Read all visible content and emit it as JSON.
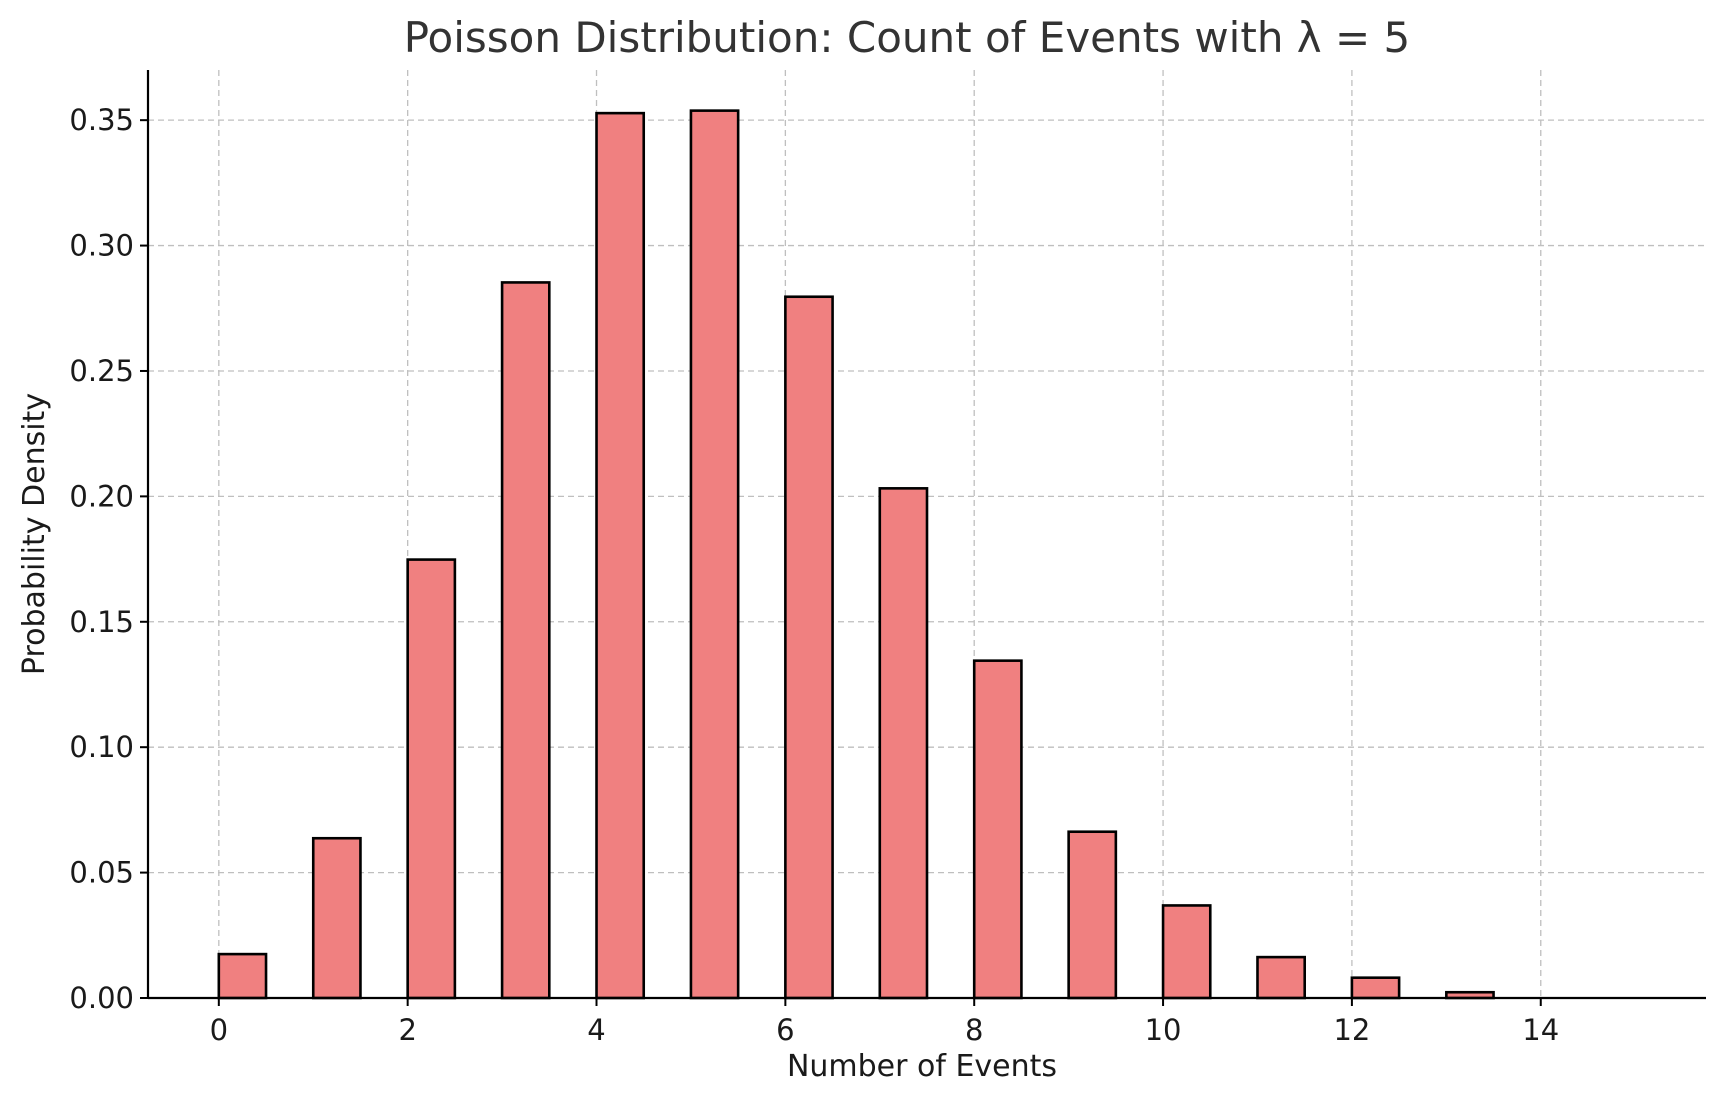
{
  "chart_data": {
    "type": "bar",
    "title": "Poisson Distribution: Count of Events with λ = 5",
    "xlabel": "Number of Events",
    "ylabel": "Probability Density",
    "x": [
      0,
      1,
      2,
      3,
      4,
      5,
      6,
      7,
      8,
      9,
      10,
      11,
      12,
      13
    ],
    "values": [
      0.0175,
      0.0637,
      0.1748,
      0.2853,
      0.3528,
      0.3538,
      0.2796,
      0.2032,
      0.1345,
      0.0663,
      0.0369,
      0.0163,
      0.0081,
      0.0023
    ],
    "xlim": [
      -0.75,
      15.75
    ],
    "ylim": [
      0,
      0.37
    ],
    "xticks": [
      0,
      2,
      4,
      6,
      8,
      10,
      12,
      14
    ],
    "yticks": [
      0.0,
      0.05,
      0.1,
      0.15,
      0.2,
      0.25,
      0.3,
      0.35
    ],
    "ytick_labels": [
      "0.00",
      "0.05",
      "0.10",
      "0.15",
      "0.20",
      "0.25",
      "0.30",
      "0.35"
    ],
    "xtick_labels": [
      "0",
      "2",
      "4",
      "6",
      "8",
      "10",
      "12",
      "14"
    ],
    "grid": true,
    "bar_color": "#F08080",
    "edge_color": "#000000"
  }
}
